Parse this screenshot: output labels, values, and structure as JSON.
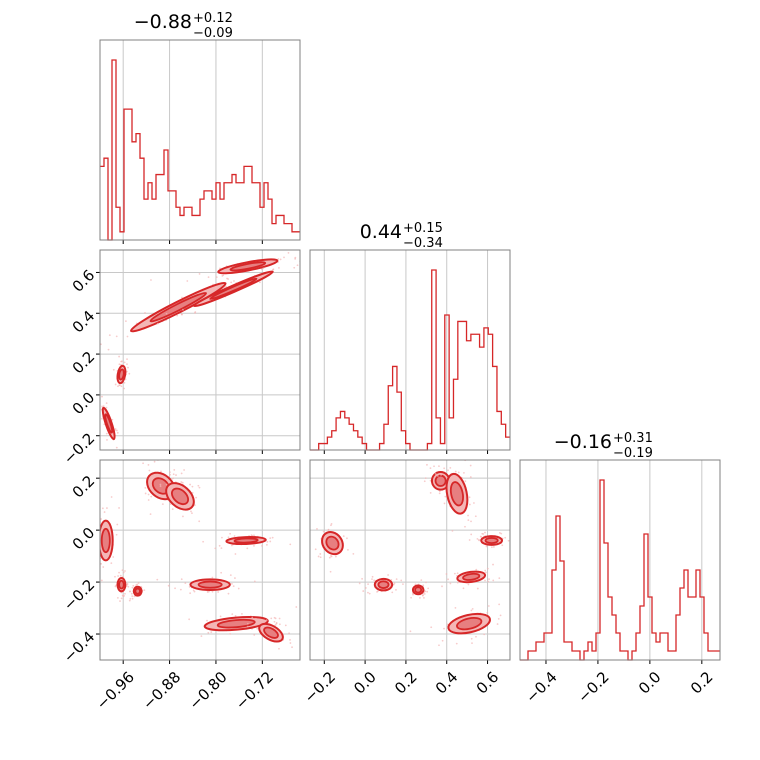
{
  "colors": {
    "accent": "#d62728",
    "fill_light": "#f4b6b6",
    "fill_mid": "#e77f80",
    "grid": "#c8c8c8",
    "frame": "#808080"
  },
  "chart_data": {
    "type": "corner",
    "grid": true,
    "parameters": [
      {
        "median": "−0.88",
        "plus": "+0.12",
        "minus": "−0.09",
        "range": [
          -1.0,
          -0.655
        ],
        "ticks": [
          -0.96,
          -0.88,
          -0.8,
          -0.72
        ],
        "tick_labels": [
          "−0.96",
          "−0.88",
          "−0.80",
          "−0.72"
        ]
      },
      {
        "median": "0.44",
        "plus": "+0.15",
        "minus": "−0.34",
        "range": [
          -0.27,
          0.71
        ],
        "ticks": [
          -0.2,
          0.0,
          0.2,
          0.4,
          0.6
        ],
        "tick_labels": [
          "−0.2",
          "0.0",
          "0.2",
          "0.4",
          "0.6"
        ]
      },
      {
        "median": "−0.16",
        "plus": "+0.31",
        "minus": "−0.19",
        "range": [
          -0.5,
          0.27
        ],
        "ticks": [
          -0.4,
          -0.2,
          0.0,
          0.2
        ],
        "tick_labels": [
          "−0.4",
          "−0.2",
          "0.0",
          "0.2"
        ]
      }
    ],
    "histograms": [
      [
        9,
        10,
        0,
        22,
        4,
        1,
        16,
        16,
        12,
        13,
        10,
        5,
        7,
        5,
        8,
        8,
        11,
        6,
        6,
        4,
        3,
        4,
        4,
        3,
        3,
        5,
        6,
        6,
        5,
        7,
        5,
        7,
        7,
        8,
        7,
        7,
        9,
        9,
        7,
        7,
        4,
        7,
        5,
        2,
        3,
        3,
        2,
        2,
        1,
        1
      ],
      [
        0,
        0,
        1,
        1,
        2,
        3,
        5,
        6,
        5,
        4,
        3,
        2,
        1,
        0,
        0,
        0,
        1,
        4,
        10,
        13,
        9,
        3,
        1,
        0,
        0,
        0,
        0,
        1,
        28,
        5,
        1,
        21,
        5,
        11,
        20,
        20,
        17,
        18,
        18,
        16,
        19,
        18,
        13,
        6,
        4,
        2
      ],
      [
        0,
        0,
        1,
        1,
        2,
        2,
        3,
        3,
        10,
        16,
        11,
        2,
        2,
        1,
        1,
        0,
        1,
        2,
        1,
        3,
        20,
        13,
        7,
        5,
        3,
        1,
        1,
        0,
        1,
        3,
        6,
        14,
        7,
        3,
        2,
        3,
        3,
        1,
        1,
        5,
        8,
        10,
        7,
        7,
        10,
        7,
        3,
        1,
        1,
        1
      ]
    ],
    "clusters": [
      {
        "pair": [
          0,
          1
        ],
        "x": -0.985,
        "y": -0.14,
        "sx": 0.006,
        "sy": 0.045,
        "rho": -0.85
      },
      {
        "pair": [
          0,
          1
        ],
        "x": -0.963,
        "y": 0.1,
        "sx": 0.004,
        "sy": 0.025,
        "rho": 0.3
      },
      {
        "pair": [
          0,
          1
        ],
        "x": -0.865,
        "y": 0.43,
        "sx": 0.048,
        "sy": 0.07,
        "rho": 0.97
      },
      {
        "pair": [
          0,
          1
        ],
        "x": -0.745,
        "y": 0.63,
        "sx": 0.03,
        "sy": 0.02,
        "rho": 0.8
      },
      {
        "pair": [
          0,
          1
        ],
        "x": -0.77,
        "y": 0.52,
        "sx": 0.04,
        "sy": 0.05,
        "rho": 0.98
      },
      {
        "pair": [
          0,
          2
        ],
        "x": -0.99,
        "y": -0.04,
        "sx": 0.007,
        "sy": 0.045,
        "rho": 0.0
      },
      {
        "pair": [
          0,
          2
        ],
        "x": -0.963,
        "y": -0.21,
        "sx": 0.004,
        "sy": 0.015,
        "rho": 0.0
      },
      {
        "pair": [
          0,
          2
        ],
        "x": -0.935,
        "y": -0.235,
        "sx": 0.004,
        "sy": 0.01,
        "rho": 0.0
      },
      {
        "pair": [
          0,
          2
        ],
        "x": -0.895,
        "y": 0.17,
        "sx": 0.014,
        "sy": 0.03,
        "rho": -0.3
      },
      {
        "pair": [
          0,
          2
        ],
        "x": -0.862,
        "y": 0.13,
        "sx": 0.014,
        "sy": 0.03,
        "rho": -0.4
      },
      {
        "pair": [
          0,
          2
        ],
        "x": -0.81,
        "y": -0.21,
        "sx": 0.02,
        "sy": 0.012,
        "rho": 0.0
      },
      {
        "pair": [
          0,
          2
        ],
        "x": -0.748,
        "y": -0.04,
        "sx": 0.02,
        "sy": 0.008,
        "rho": 0.2
      },
      {
        "pair": [
          0,
          2
        ],
        "x": -0.765,
        "y": -0.36,
        "sx": 0.032,
        "sy": 0.015,
        "rho": 0.4
      },
      {
        "pair": [
          0,
          2
        ],
        "x": -0.705,
        "y": -0.395,
        "sx": 0.012,
        "sy": 0.02,
        "rho": -0.5
      },
      {
        "pair": [
          1,
          2
        ],
        "x": -0.16,
        "y": -0.05,
        "sx": 0.03,
        "sy": 0.025,
        "rho": -0.2
      },
      {
        "pair": [
          1,
          2
        ],
        "x": 0.09,
        "y": -0.21,
        "sx": 0.025,
        "sy": 0.013,
        "rho": 0.0
      },
      {
        "pair": [
          1,
          2
        ],
        "x": 0.26,
        "y": -0.23,
        "sx": 0.015,
        "sy": 0.01,
        "rho": 0.0
      },
      {
        "pair": [
          1,
          2
        ],
        "x": 0.37,
        "y": 0.19,
        "sx": 0.025,
        "sy": 0.02,
        "rho": 0.0
      },
      {
        "pair": [
          1,
          2
        ],
        "x": 0.45,
        "y": 0.14,
        "sx": 0.03,
        "sy": 0.045,
        "rho": -0.3
      },
      {
        "pair": [
          1,
          2
        ],
        "x": 0.62,
        "y": -0.04,
        "sx": 0.03,
        "sy": 0.01,
        "rho": 0.0
      },
      {
        "pair": [
          1,
          2
        ],
        "x": 0.52,
        "y": -0.18,
        "sx": 0.04,
        "sy": 0.012,
        "rho": 0.3
      },
      {
        "pair": [
          1,
          2
        ],
        "x": 0.51,
        "y": -0.36,
        "sx": 0.06,
        "sy": 0.022,
        "rho": 0.4
      }
    ]
  }
}
